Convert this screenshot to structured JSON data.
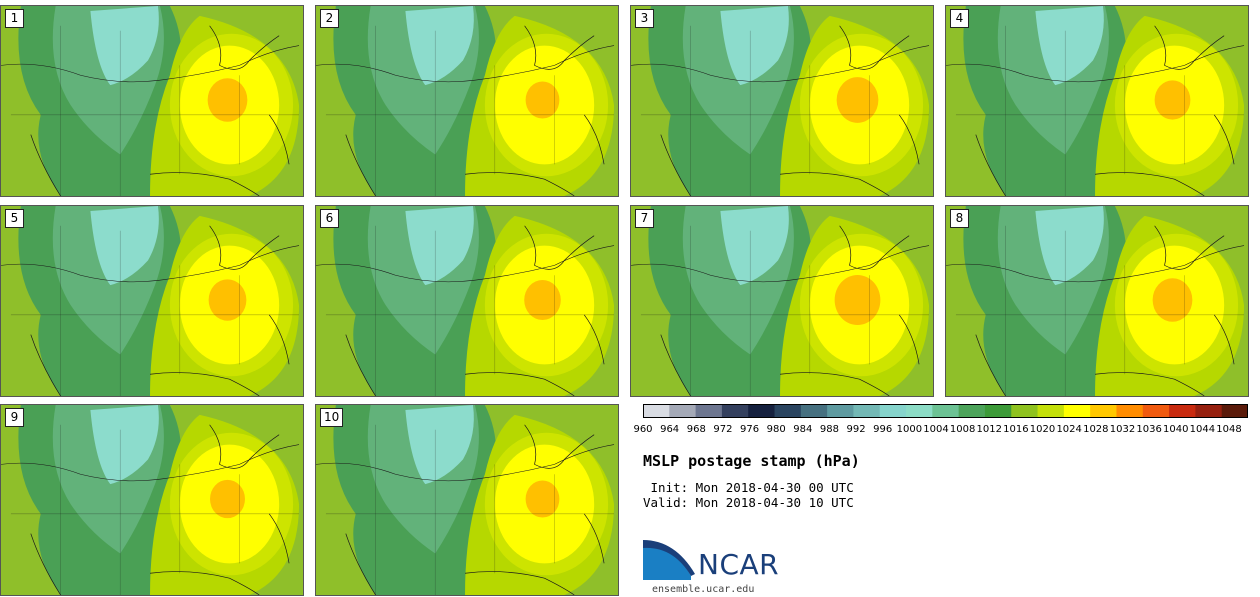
{
  "panels": [
    {
      "num": "1",
      "core": 1.0
    },
    {
      "num": "2",
      "core": 0.85
    },
    {
      "num": "3",
      "core": 1.05
    },
    {
      "num": "4",
      "core": 0.9
    },
    {
      "num": "5",
      "core": 0.95
    },
    {
      "num": "6",
      "core": 0.92
    },
    {
      "num": "7",
      "core": 1.15
    },
    {
      "num": "8",
      "core": 1.0
    },
    {
      "num": "9",
      "core": 0.88
    },
    {
      "num": "10",
      "core": 0.85
    }
  ],
  "colorbar": {
    "labels": [
      "960",
      "964",
      "968",
      "972",
      "976",
      "980",
      "984",
      "988",
      "992",
      "996",
      "1000",
      "1004",
      "1008",
      "1012",
      "1016",
      "1020",
      "1024",
      "1028",
      "1032",
      "1036",
      "1040",
      "1044",
      "1048"
    ],
    "colors": [
      "#d9dce3",
      "#a4a9b7",
      "#6d7690",
      "#34405e",
      "#16213f",
      "#2a4460",
      "#467080",
      "#5e9aa0",
      "#73b8b5",
      "#86d4cc",
      "#8cdcc6",
      "#6cc294",
      "#4ca35a",
      "#3c9a38",
      "#8fc21f",
      "#c4e00a",
      "#ffff00",
      "#ffc800",
      "#ff8c00",
      "#f05a0f",
      "#c82a0f",
      "#96200f",
      "#5a1a0a"
    ]
  },
  "title": "MSLP postage stamp (hPa)",
  "init_text": " Init: Mon 2018-04-30 00 UTC",
  "valid_text": "Valid: Mon 2018-04-30 10 UTC",
  "logo_text": "NCAR",
  "site_url": "ensemble.ucar.edu",
  "map_colors": {
    "base": "#8fbf2a",
    "ring_light_green": "#b6d800",
    "ring_yellowgreen": "#cde400",
    "ring_yellow": "#ffff00",
    "core_orange": "#ffc000",
    "green_dark": "#4aa055",
    "green_mid": "#62b27a",
    "teal": "#8cdccc"
  }
}
